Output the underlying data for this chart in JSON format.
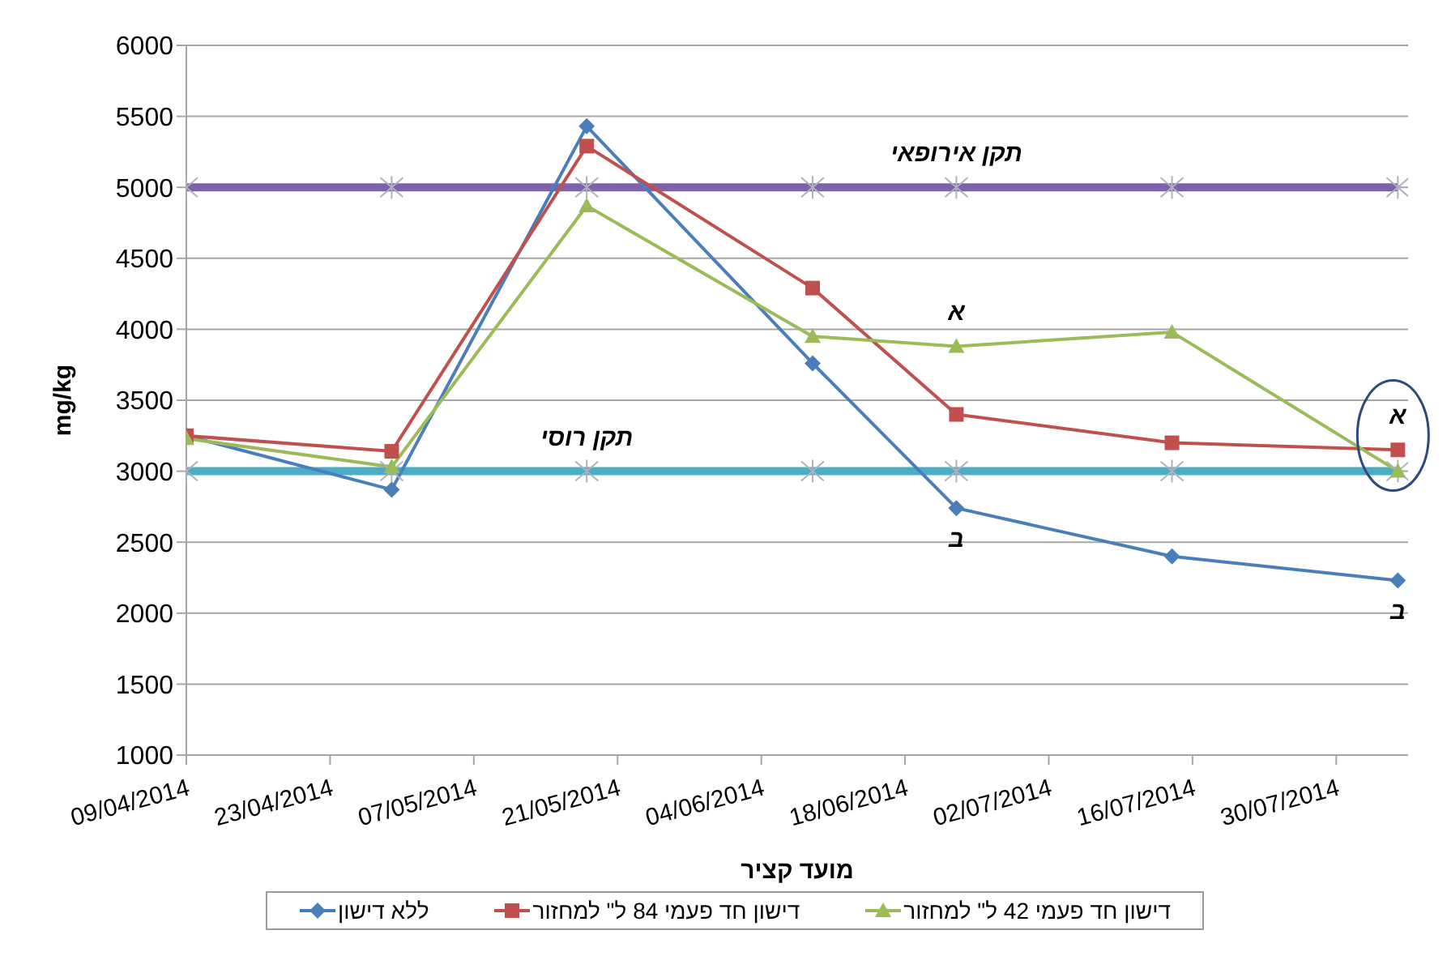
{
  "chart_data": {
    "type": "line",
    "xlabel": "מועד קציר",
    "ylabel": "mg/kg",
    "x": [
      "2014-04-09",
      "2014-04-29",
      "2014-05-18",
      "2014-06-09",
      "2014-06-23",
      "2014-07-14",
      "2014-08-05"
    ],
    "xlim": [
      "2014-04-09",
      "2014-08-06"
    ],
    "xticks": [
      {
        "value": "2014-04-09",
        "label": "09/04/2014"
      },
      {
        "value": "2014-04-23",
        "label": "23/04/2014"
      },
      {
        "value": "2014-05-07",
        "label": "07/05/2014"
      },
      {
        "value": "2014-05-21",
        "label": "21/05/2014"
      },
      {
        "value": "2014-06-04",
        "label": "04/06/2014"
      },
      {
        "value": "2014-06-18",
        "label": "18/06/2014"
      },
      {
        "value": "2014-07-02",
        "label": "02/07/2014"
      },
      {
        "value": "2014-07-16",
        "label": "16/07/2014"
      },
      {
        "value": "2014-07-30",
        "label": "30/07/2014"
      }
    ],
    "ylim": [
      1000,
      6000
    ],
    "yticks": [
      1000,
      1500,
      2000,
      2500,
      3000,
      3500,
      4000,
      4500,
      5000,
      5500,
      6000
    ],
    "grid": "y",
    "legend": "bottom",
    "series": [
      {
        "color": "#7f62a8",
        "marker": "cross",
        "values": [
          5000,
          5000,
          5000,
          5000,
          5000,
          5000,
          5000
        ]
      },
      {
        "color": "#4bacc6",
        "marker": "cross",
        "values": [
          3000,
          3000,
          3000,
          3000,
          3000,
          3000,
          3000
        ]
      },
      {
        "name": "ללא דישון",
        "color": "#4a7ebb",
        "marker": "diamond",
        "values": [
          3250,
          2870,
          5430,
          3760,
          2740,
          2400,
          2230
        ]
      },
      {
        "name": "דישון חד פעמי 84 ל\" למחזור",
        "color": "#c0504d",
        "marker": "square",
        "values": [
          3250,
          3140,
          5290,
          4290,
          3400,
          3200,
          3150
        ]
      },
      {
        "name": "דישון חד פעמי 42 ל\" למחזור",
        "color": "#9bbb59",
        "marker": "triangle",
        "values": [
          3230,
          3030,
          4870,
          3950,
          3880,
          3980,
          3000
        ]
      }
    ],
    "annotations": [
      {
        "text": "תקן אירופאי",
        "x": "2014-06-23",
        "y": 5000
      },
      {
        "text": "תקן רוסי",
        "x": "2014-05-18",
        "y": 3000
      },
      {
        "text": "א",
        "x": "2014-06-23",
        "y": 3880
      },
      {
        "text": "ב",
        "x": "2014-06-23",
        "y": 2740
      },
      {
        "text": "א",
        "x": "2014-08-05",
        "y": 3150
      },
      {
        "text": "ב",
        "x": "2014-08-05",
        "y": 2230
      }
    ]
  }
}
